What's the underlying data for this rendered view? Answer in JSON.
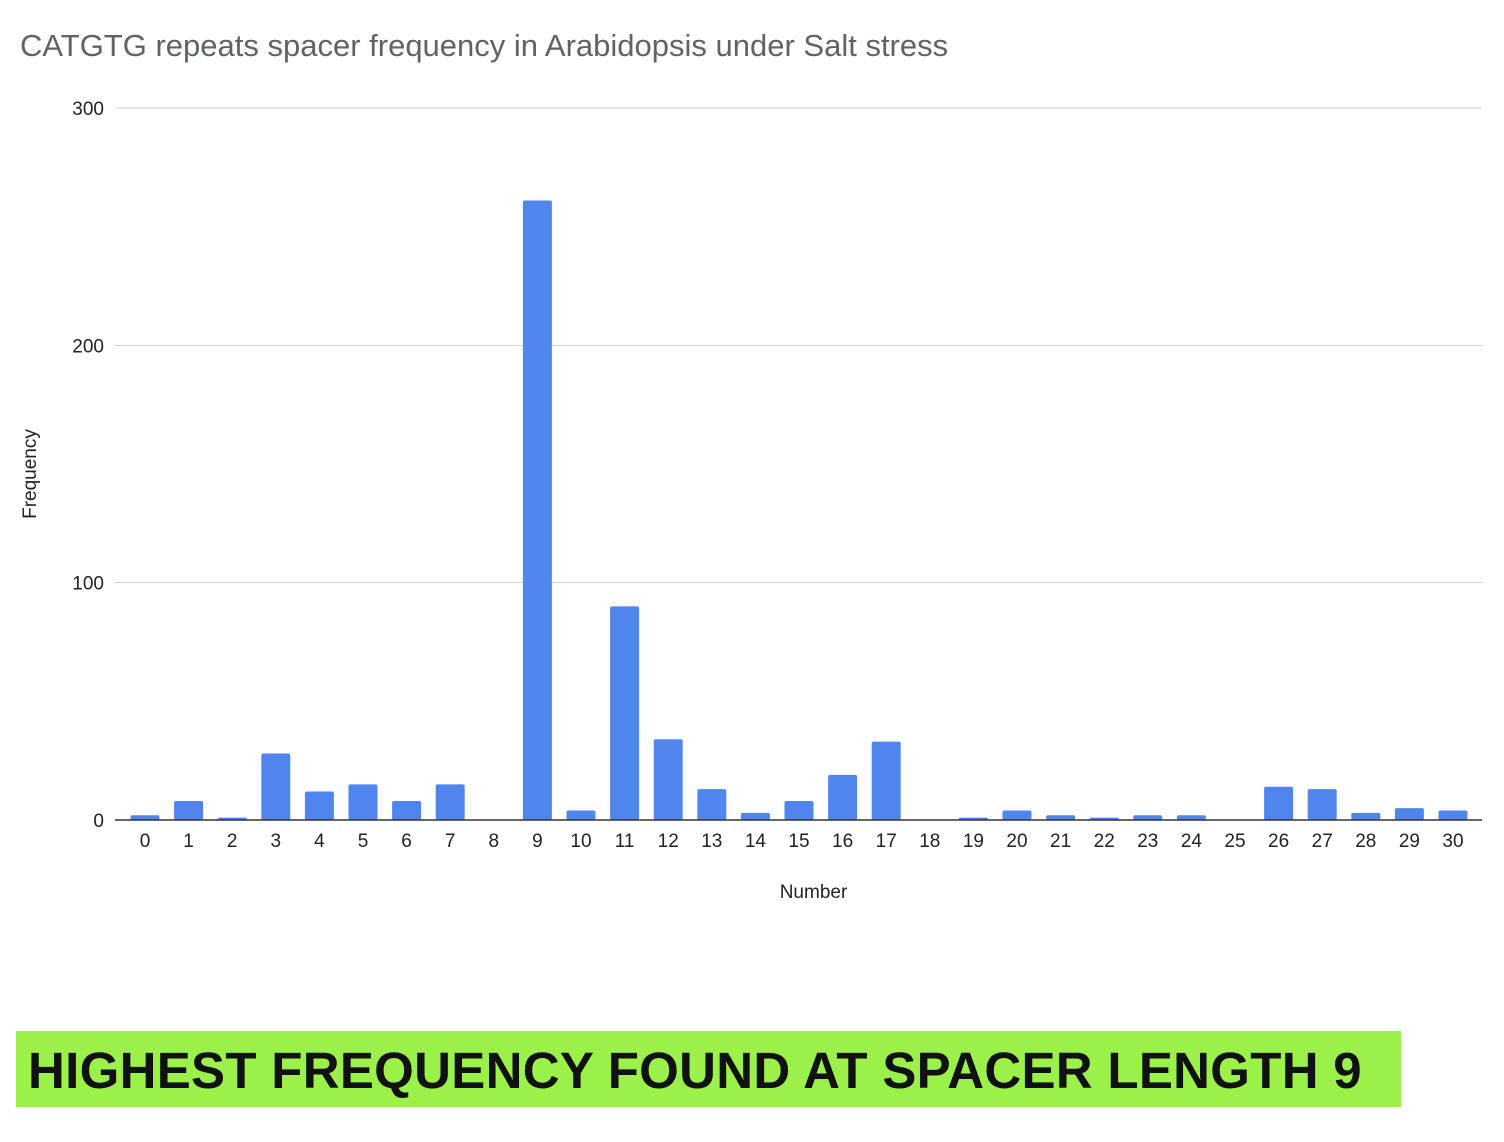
{
  "chart_data": {
    "type": "bar",
    "title": "CATGTG repeats spacer frequency in Arabidopsis under Salt stress",
    "xlabel": "Number",
    "ylabel": "Frequency",
    "categories": [
      "0",
      "1",
      "2",
      "3",
      "4",
      "5",
      "6",
      "7",
      "8",
      "9",
      "10",
      "11",
      "12",
      "13",
      "14",
      "15",
      "16",
      "17",
      "18",
      "19",
      "20",
      "21",
      "22",
      "23",
      "24",
      "25",
      "26",
      "27",
      "28",
      "29",
      "30"
    ],
    "values": [
      2,
      8,
      1,
      28,
      12,
      15,
      8,
      15,
      0,
      261,
      4,
      90,
      34,
      13,
      3,
      8,
      19,
      33,
      0,
      1,
      4,
      2,
      1,
      2,
      2,
      0,
      14,
      13,
      3,
      5,
      4
    ],
    "ylim": [
      0,
      300
    ],
    "yticks": [
      0,
      100,
      200,
      300
    ],
    "grid": true,
    "legend": "none",
    "bar_color": "#5085ed"
  },
  "callout": {
    "text": "HIGHEST FREQUENCY FOUND AT SPACER LENGTH 9",
    "background": "#9cf04a"
  }
}
